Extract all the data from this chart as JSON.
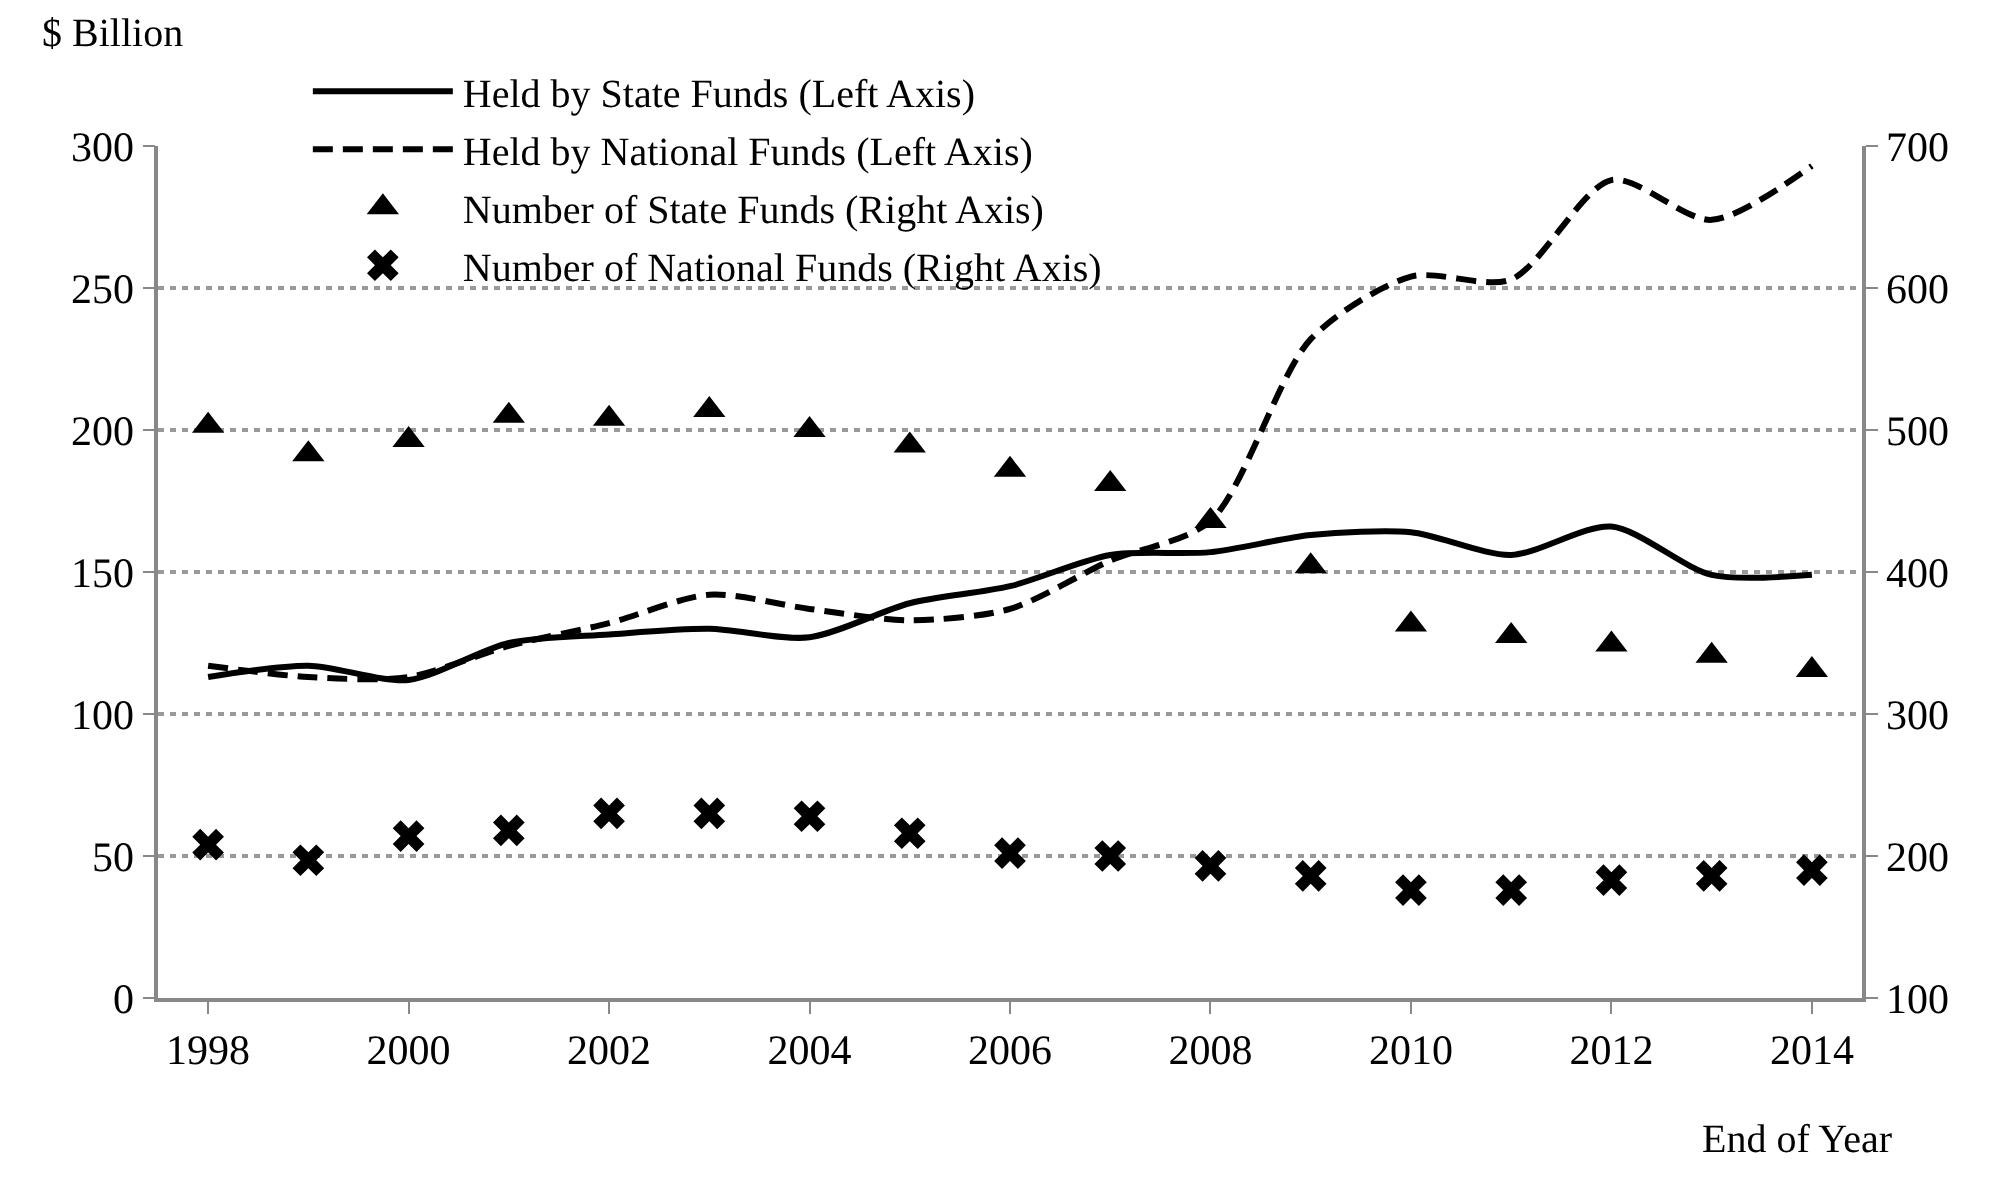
{
  "chart_data": {
    "type": "line",
    "ylabel": "$ Billion",
    "xlabel": "End of Year",
    "x": [
      1998,
      1999,
      2000,
      2001,
      2002,
      2003,
      2004,
      2005,
      2006,
      2007,
      2008,
      2009,
      2010,
      2011,
      2012,
      2013,
      2014
    ],
    "series": [
      {
        "name": "Held by State Funds (Left Axis)",
        "color": "#000000",
        "line_style": "solid",
        "marker": "none",
        "values": [
          113,
          117,
          112,
          125,
          128,
          130,
          127,
          139,
          145,
          156,
          157,
          163,
          164,
          156,
          166,
          149,
          149
        ]
      },
      {
        "name": "Held by National Funds (Left Axis)",
        "color": "#000000",
        "line_style": "dashed",
        "marker": "none",
        "values": [
          117,
          113,
          113,
          124,
          132,
          142,
          137,
          133,
          137,
          154,
          168,
          232,
          254,
          253,
          288,
          274,
          293
        ]
      },
      {
        "name": "Number of State Funds (Right Axis)",
        "type": "scatter",
        "axis": "y2",
        "color": "#000000",
        "marker": "triangle",
        "values": [
          503,
          483,
          493,
          510,
          508,
          514,
          500,
          489,
          472,
          462,
          436,
          404,
          363,
          355,
          349,
          341,
          331
        ]
      },
      {
        "name": "Number of National Funds (Right Axis)",
        "type": "scatter",
        "axis": "y2",
        "color": "#000000",
        "marker": "cross",
        "values": [
          208,
          197,
          214,
          218,
          230,
          230,
          228,
          216,
          202,
          200,
          193,
          186,
          176,
          176,
          183,
          186,
          190
        ]
      }
    ],
    "xlim": [
      1997.5,
      2014.5
    ],
    "xticks": [
      1998,
      2000,
      2002,
      2004,
      2006,
      2008,
      2010,
      2012,
      2014
    ],
    "ylim": [
      0,
      300
    ],
    "yticks": [
      0,
      50,
      100,
      150,
      200,
      250,
      300
    ],
    "y2lim": [
      100,
      700
    ],
    "y2ticks": [
      100,
      200,
      300,
      400,
      500,
      600,
      700
    ],
    "grid": "y",
    "legend": "top left"
  }
}
